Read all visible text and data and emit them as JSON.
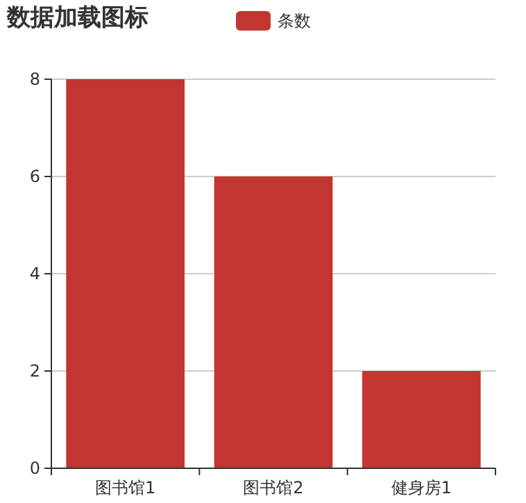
{
  "chart_data": {
    "type": "bar",
    "title": "数据加载图标",
    "categories": [
      "图书馆1",
      "图书馆2",
      "健身房1"
    ],
    "series": [
      {
        "name": "条数",
        "color": "#c23531",
        "values": [
          8,
          6,
          2
        ]
      }
    ],
    "ylim": [
      0,
      8
    ],
    "yticks": [
      0,
      2,
      4,
      6,
      8
    ],
    "grid": "y",
    "legend": "top"
  }
}
